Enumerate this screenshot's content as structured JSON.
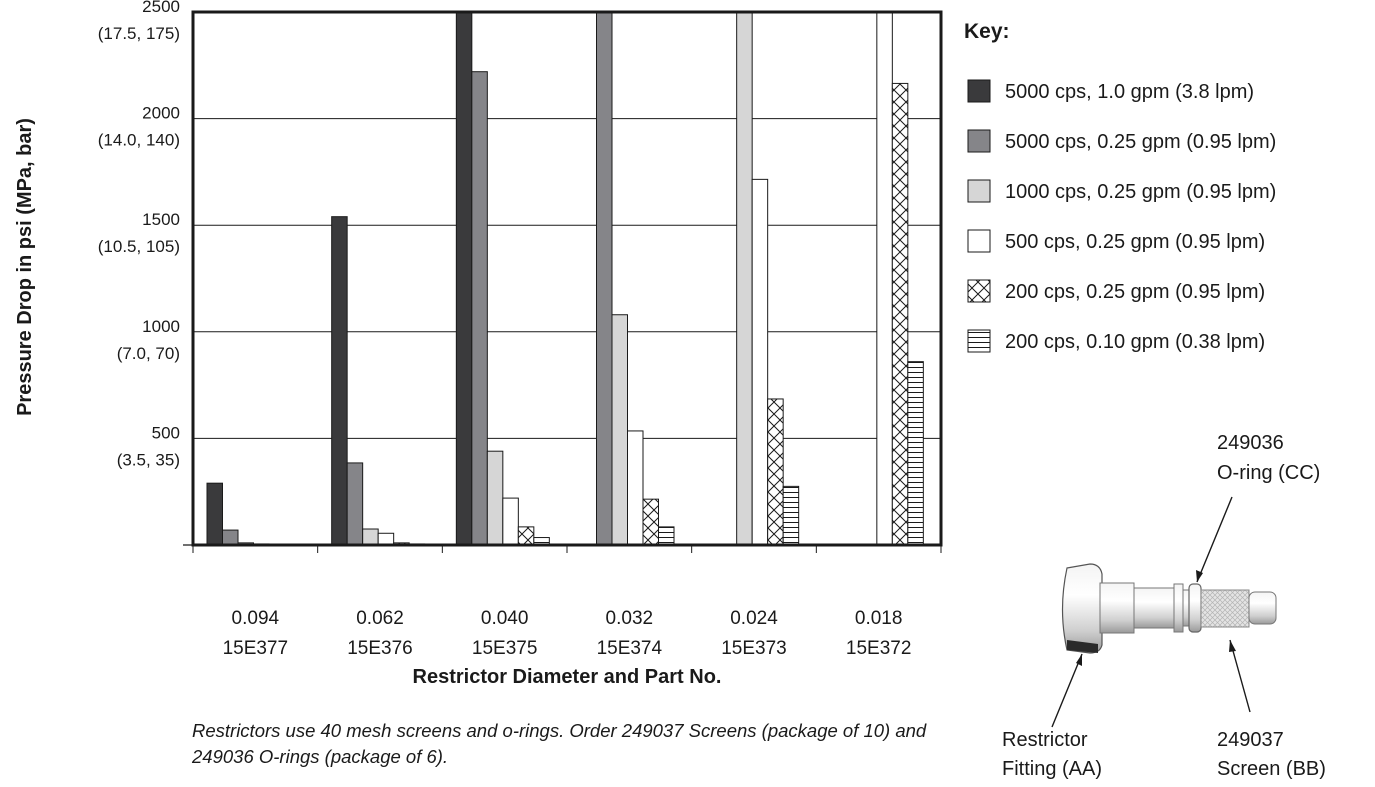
{
  "colors": {
    "s1": "#3a3a3c",
    "s2": "#858589",
    "s3": "#d6d6d6",
    "s4": "#ffffff",
    "stroke": "#1a1a1a"
  },
  "chart_data": {
    "type": "bar",
    "ylabel": "Pressure Drop in psi (MPa, bar)",
    "xlabel": "Restrictor Diameter and Part No.",
    "ylim": [
      0,
      2500
    ],
    "grid": true,
    "legend_title": "Key:",
    "legend_position": "right",
    "y_ticks": [
      {
        "value": 500,
        "line1": "500",
        "line2": "(3.5, 35)"
      },
      {
        "value": 1000,
        "line1": "1000",
        "line2": "(7.0, 70)"
      },
      {
        "value": 1500,
        "line1": "1500",
        "line2": "(10.5, 105)"
      },
      {
        "value": 2000,
        "line1": "2000",
        "line2": "(14.0, 140)"
      },
      {
        "value": 2500,
        "line1": "2500",
        "line2": "(17.5, 175)"
      }
    ],
    "categories": [
      {
        "diameter": "0.094",
        "part": "15E377"
      },
      {
        "diameter": "0.062",
        "part": "15E376"
      },
      {
        "diameter": "0.040",
        "part": "15E375"
      },
      {
        "diameter": "0.032",
        "part": "15E374"
      },
      {
        "diameter": "0.024",
        "part": "15E373"
      },
      {
        "diameter": "0.018",
        "part": "15E372"
      }
    ],
    "series": [
      {
        "name": "5000 cps, 1.0 gpm (3.8 lpm)",
        "pattern": "dark",
        "values": [
          290,
          1540,
          2500,
          null,
          null,
          null
        ]
      },
      {
        "name": "5000 cps, 0.25 gpm (0.95 lpm)",
        "pattern": "mid",
        "values": [
          70,
          385,
          2220,
          2500,
          null,
          null
        ]
      },
      {
        "name": "1000 cps, 0.25 gpm (0.95 lpm)",
        "pattern": "light",
        "values": [
          10,
          75,
          440,
          1080,
          2500,
          null
        ]
      },
      {
        "name": "500 cps, 0.25 gpm (0.95 lpm)",
        "pattern": "white",
        "values": [
          5,
          55,
          220,
          535,
          1715,
          2500
        ]
      },
      {
        "name": "200 cps, 0.25 gpm (0.95 lpm)",
        "pattern": "crosshatch",
        "values": [
          2,
          10,
          85,
          215,
          685,
          2165
        ]
      },
      {
        "name": "200 cps, 0.10 gpm (0.38 lpm)",
        "pattern": "hlines",
        "values": [
          1,
          5,
          35,
          85,
          275,
          860
        ]
      }
    ]
  },
  "note": "Restrictors use 40 mesh screens and o-rings. Order 249037 Screens (package of 10) and 249036 O-rings (package of 6).",
  "callouts": {
    "oring_line1": "249036",
    "oring_line2": "O-ring (CC)",
    "fitting_line1": "Restrictor",
    "fitting_line2": "Fitting (AA)",
    "screen_line1": "249037",
    "screen_line2": "Screen (BB)"
  }
}
